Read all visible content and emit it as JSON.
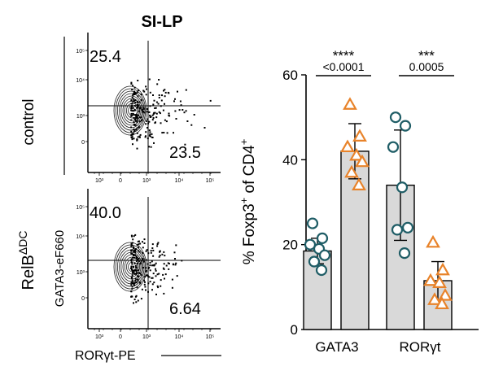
{
  "flow": {
    "title": "SI-LP",
    "row_labels": [
      "control",
      "RelB"
    ],
    "row2_superscript": "ΔDC",
    "y_axis_label": "GATA3-eF660",
    "x_axis_label": "RORγt-PE",
    "panels": [
      {
        "top_left_pct": "25.4",
        "bottom_right_pct": "23.5"
      },
      {
        "top_left_pct": "40.0",
        "bottom_right_pct": "6.64"
      }
    ],
    "tick_labels_x": [
      "10³",
      "0",
      "10³",
      "10⁴",
      "10⁵"
    ],
    "tick_labels_y": [
      "10³",
      "0",
      "10³",
      "10⁴",
      "10⁵"
    ]
  },
  "chart_data": {
    "type": "bar",
    "ylabel_parts": [
      "% Foxp3",
      "+",
      " of CD4",
      "+"
    ],
    "ylim": [
      0,
      60
    ],
    "yticks": [
      0,
      20,
      40,
      60
    ],
    "categories": [
      "GATA3",
      "RORγt"
    ],
    "series": [
      {
        "name": "control",
        "marker": "circle",
        "color": "#1f5d66",
        "means": [
          18.5,
          34
        ],
        "sd": [
          3,
          13
        ]
      },
      {
        "name": "RelBΔDC",
        "marker": "triangle",
        "color": "#e8832a",
        "means": [
          42,
          11.5
        ],
        "sd": [
          6.5,
          4.5
        ]
      }
    ],
    "points": {
      "GATA3": {
        "control": [
          25,
          21.5,
          20,
          19,
          17.5,
          16,
          14
        ],
        "RelBΔDC": [
          53,
          45.5,
          43,
          41,
          39.5,
          37,
          34
        ]
      },
      "RORγt": {
        "control": [
          50,
          48,
          43,
          33.5,
          24,
          23.5,
          18
        ],
        "RelBΔDC": [
          20.5,
          14,
          11.5,
          11,
          8,
          7,
          6
        ]
      }
    },
    "significance": [
      {
        "stars": "****",
        "p": "<0.0001"
      },
      {
        "stars": "***",
        "p": "0.0005"
      }
    ]
  }
}
